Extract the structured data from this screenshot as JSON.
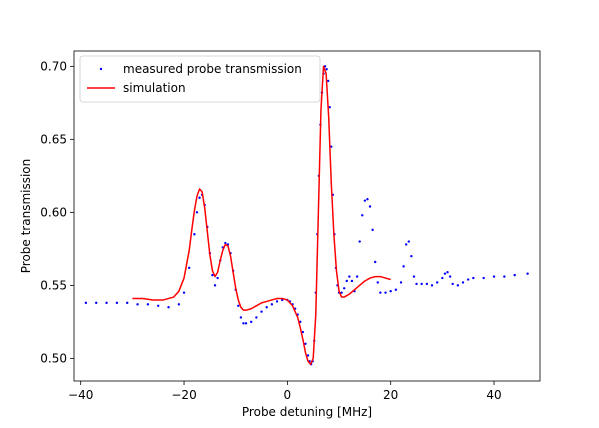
{
  "chart_data": {
    "type": "scatter",
    "title": "",
    "xlabel": "Probe detuning [MHz]",
    "ylabel": "Probe transmission",
    "xlim": [
      -41.3,
      48.9
    ],
    "ylim": [
      0.4845,
      0.7105
    ],
    "xticks": [
      -40,
      -20,
      0,
      20,
      40
    ],
    "xtick_labels": [
      "−40",
      "−20",
      "0",
      "20",
      "40"
    ],
    "yticks": [
      0.5,
      0.55,
      0.6,
      0.65,
      0.7
    ],
    "ytick_labels": [
      "0.50",
      "0.55",
      "0.60",
      "0.65",
      "0.70"
    ],
    "grid": false,
    "legend_position": "top-left",
    "series": [
      {
        "name": "measured probe transmission",
        "kind": "scatter",
        "color": "#0000ff",
        "x": [
          -39,
          -37,
          -35,
          -33,
          -31,
          -29,
          -27,
          -25,
          -23,
          -21,
          -20,
          -19,
          -18,
          -17.5,
          -17,
          -16.5,
          -16,
          -15.5,
          -15,
          -14.5,
          -14,
          -13.5,
          -13,
          -12.5,
          -12,
          -11.5,
          -11,
          -10.5,
          -10,
          -9.5,
          -9,
          -8.5,
          -8,
          -7,
          -6,
          -5,
          -4,
          -3,
          -2,
          -1,
          0,
          0.5,
          1,
          1.5,
          2,
          2.5,
          3,
          3.5,
          4,
          4.3,
          4.6,
          4.9,
          5.2,
          5.5,
          5.8,
          6.1,
          6.4,
          6.7,
          7.0,
          7.3,
          7.6,
          7.9,
          8.2,
          8.5,
          8.8,
          9.1,
          9.4,
          9.7,
          10.0,
          10.5,
          11,
          11.5,
          12,
          12.5,
          13,
          13.5,
          14,
          14.5,
          15,
          15.5,
          16,
          16.5,
          17,
          17.5,
          18,
          19,
          20,
          21,
          22,
          22.5,
          23,
          23.5,
          24,
          24.5,
          25,
          26,
          27,
          28,
          29,
          30,
          30.5,
          31,
          31.5,
          32,
          33,
          34,
          35,
          36,
          38,
          40,
          42,
          44,
          46.5
        ],
        "y": [
          0.538,
          0.538,
          0.538,
          0.538,
          0.538,
          0.537,
          0.537,
          0.536,
          0.535,
          0.537,
          0.545,
          0.562,
          0.585,
          0.6,
          0.61,
          0.612,
          0.605,
          0.59,
          0.572,
          0.557,
          0.55,
          0.555,
          0.567,
          0.576,
          0.579,
          0.578,
          0.572,
          0.56,
          0.547,
          0.536,
          0.528,
          0.524,
          0.524,
          0.525,
          0.528,
          0.532,
          0.535,
          0.537,
          0.539,
          0.54,
          0.54,
          0.539,
          0.537,
          0.534,
          0.53,
          0.525,
          0.518,
          0.51,
          0.502,
          0.498,
          0.496,
          0.498,
          0.512,
          0.545,
          0.585,
          0.625,
          0.66,
          0.682,
          0.695,
          0.7,
          0.698,
          0.69,
          0.672,
          0.645,
          0.612,
          0.585,
          0.562,
          0.55,
          0.545,
          0.545,
          0.548,
          0.553,
          0.556,
          0.553,
          0.546,
          0.556,
          0.58,
          0.598,
          0.608,
          0.609,
          0.604,
          0.588,
          0.566,
          0.552,
          0.545,
          0.545,
          0.546,
          0.547,
          0.552,
          0.563,
          0.578,
          0.58,
          0.57,
          0.556,
          0.551,
          0.551,
          0.551,
          0.55,
          0.552,
          0.555,
          0.558,
          0.559,
          0.556,
          0.551,
          0.55,
          0.552,
          0.554,
          0.555,
          0.555,
          0.556,
          0.556,
          0.557,
          0.558
        ]
      },
      {
        "name": "simulation",
        "kind": "line",
        "color": "#ff0000",
        "x": [
          -30,
          -28,
          -26,
          -24,
          -22,
          -21,
          -20,
          -19,
          -18.5,
          -18,
          -17.5,
          -17,
          -16.5,
          -16,
          -15.5,
          -15,
          -14.5,
          -14,
          -13.5,
          -13,
          -12.5,
          -12,
          -11.5,
          -11,
          -10.5,
          -10,
          -9.5,
          -9,
          -8.5,
          -8,
          -7,
          -6,
          -5,
          -4,
          -3,
          -2,
          -1,
          0,
          1,
          2,
          2.5,
          3,
          3.5,
          4,
          4.5,
          5,
          5.5,
          6,
          6.5,
          7,
          7.5,
          8,
          8.5,
          9,
          9.5,
          10,
          10.5,
          11,
          12,
          13,
          14,
          15,
          16,
          17,
          18,
          19,
          20
        ],
        "y": [
          0.541,
          0.541,
          0.54,
          0.54,
          0.542,
          0.546,
          0.555,
          0.574,
          0.588,
          0.601,
          0.611,
          0.616,
          0.614,
          0.603,
          0.587,
          0.571,
          0.56,
          0.556,
          0.559,
          0.567,
          0.574,
          0.578,
          0.577,
          0.57,
          0.559,
          0.548,
          0.54,
          0.535,
          0.533,
          0.533,
          0.534,
          0.536,
          0.538,
          0.539,
          0.54,
          0.541,
          0.541,
          0.54,
          0.536,
          0.528,
          0.521,
          0.513,
          0.504,
          0.498,
          0.496,
          0.5,
          0.53,
          0.6,
          0.67,
          0.7,
          0.695,
          0.665,
          0.62,
          0.585,
          0.56,
          0.546,
          0.542,
          0.542,
          0.544,
          0.547,
          0.55,
          0.553,
          0.555,
          0.556,
          0.556,
          0.555,
          0.554
        ]
      }
    ]
  }
}
